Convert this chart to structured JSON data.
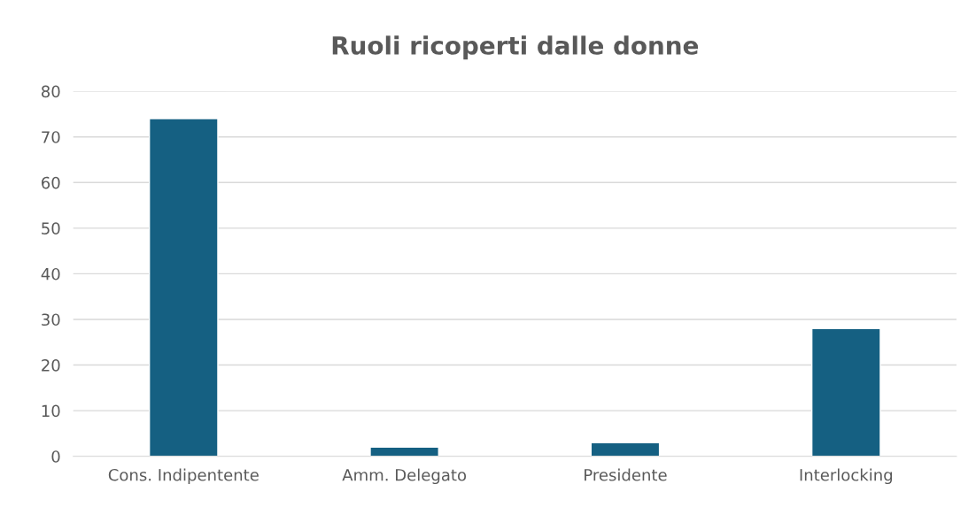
{
  "chart_data": {
    "type": "bar",
    "title": "Ruoli ricoperti dalle donne",
    "categories": [
      "Cons. Indipentente",
      "Amm. Delegato",
      "Presidente",
      "Interlocking"
    ],
    "values": [
      74,
      2,
      3,
      28
    ],
    "color": "#156082",
    "ylim": [
      0,
      80
    ],
    "yticks": [
      0,
      10,
      20,
      30,
      40,
      50,
      60,
      70,
      80
    ],
    "grid": "y",
    "legend": false
  }
}
